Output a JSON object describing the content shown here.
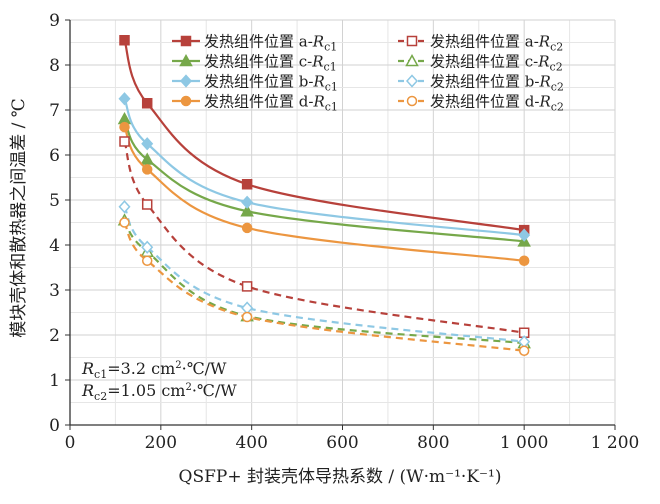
{
  "chart_data": {
    "type": "line",
    "xlabel": "QSFP+ 封装壳体导热系数 / (W·m⁻¹·K⁻¹)",
    "ylabel": "模块壳体和散热器之间温差 / ℃",
    "xlim": [
      0,
      1200
    ],
    "ylim": [
      0,
      9
    ],
    "xticks": [
      {
        "value": 0,
        "label": "0"
      },
      {
        "value": 200,
        "label": "200"
      },
      {
        "value": 400,
        "label": "400"
      },
      {
        "value": 600,
        "label": "600"
      },
      {
        "value": 800,
        "label": "800"
      },
      {
        "value": 1000,
        "label": "1 000"
      },
      {
        "value": 1200,
        "label": "1 200"
      }
    ],
    "yticks": [
      {
        "value": 0,
        "label": "0"
      },
      {
        "value": 1,
        "label": "1"
      },
      {
        "value": 2,
        "label": "2"
      },
      {
        "value": 3,
        "label": "3"
      },
      {
        "value": 4,
        "label": "4"
      },
      {
        "value": 5,
        "label": "5"
      },
      {
        "value": 6,
        "label": "6"
      },
      {
        "value": 7,
        "label": "7"
      },
      {
        "value": 8,
        "label": "8"
      },
      {
        "value": 9,
        "label": "9"
      }
    ],
    "x": [
      120,
      170,
      390,
      1000
    ],
    "series": [
      {
        "name": "发热组件位置 a-Rc1",
        "loc": "a",
        "sub": "c1",
        "color": "#b7413b",
        "dash": false,
        "marker": "square",
        "filled": true,
        "values": [
          8.55,
          7.15,
          5.35,
          4.33
        ]
      },
      {
        "name": "发热组件位置 c-Rc1",
        "loc": "c",
        "sub": "c1",
        "color": "#76a84a",
        "dash": false,
        "marker": "triangle",
        "filled": true,
        "values": [
          6.8,
          5.9,
          4.75,
          4.08
        ]
      },
      {
        "name": "发热组件位置 b-Rc1",
        "loc": "b",
        "sub": "c1",
        "color": "#8ec8e4",
        "dash": false,
        "marker": "diamond",
        "filled": true,
        "values": [
          7.25,
          6.25,
          4.95,
          4.22
        ]
      },
      {
        "name": "发热组件位置 d-Rc1",
        "loc": "d",
        "sub": "c1",
        "color": "#ec9640",
        "dash": false,
        "marker": "circle",
        "filled": true,
        "values": [
          6.62,
          5.68,
          4.38,
          3.65
        ]
      },
      {
        "name": "发热组件位置 a-Rc2",
        "loc": "a",
        "sub": "c2",
        "color": "#b7413b",
        "dash": true,
        "marker": "square",
        "filled": false,
        "values": [
          6.3,
          4.9,
          3.08,
          2.05
        ]
      },
      {
        "name": "发热组件位置 c-Rc2",
        "loc": "c",
        "sub": "c2",
        "color": "#76a84a",
        "dash": true,
        "marker": "triangle",
        "filled": false,
        "values": [
          4.55,
          3.85,
          2.42,
          1.82
        ]
      },
      {
        "name": "发热组件位置 b-Rc2",
        "loc": "b",
        "sub": "c2",
        "color": "#8ec8e4",
        "dash": true,
        "marker": "diamond",
        "filled": false,
        "values": [
          4.85,
          3.95,
          2.6,
          1.85
        ]
      },
      {
        "name": "发热组件位置 d-Rc2",
        "loc": "d",
        "sub": "c2",
        "color": "#ec9640",
        "dash": true,
        "marker": "circle",
        "filled": false,
        "values": [
          4.5,
          3.65,
          2.4,
          1.65
        ]
      }
    ],
    "annotations": [
      {
        "label": "Rc1=3.2 cm²·℃/W",
        "var": "R",
        "sub": "c1",
        "rest": "=3.2 cm",
        "sup": "2",
        "tail": "·℃/W"
      },
      {
        "label": "Rc2=1.05 cm²·℃/W",
        "var": "R",
        "sub": "c2",
        "rest": "=1.05 cm",
        "sup": "2",
        "tail": "·℃/W"
      }
    ],
    "legend_prefix": "发热组件位置",
    "legend_position": "top-right",
    "grid": true
  }
}
